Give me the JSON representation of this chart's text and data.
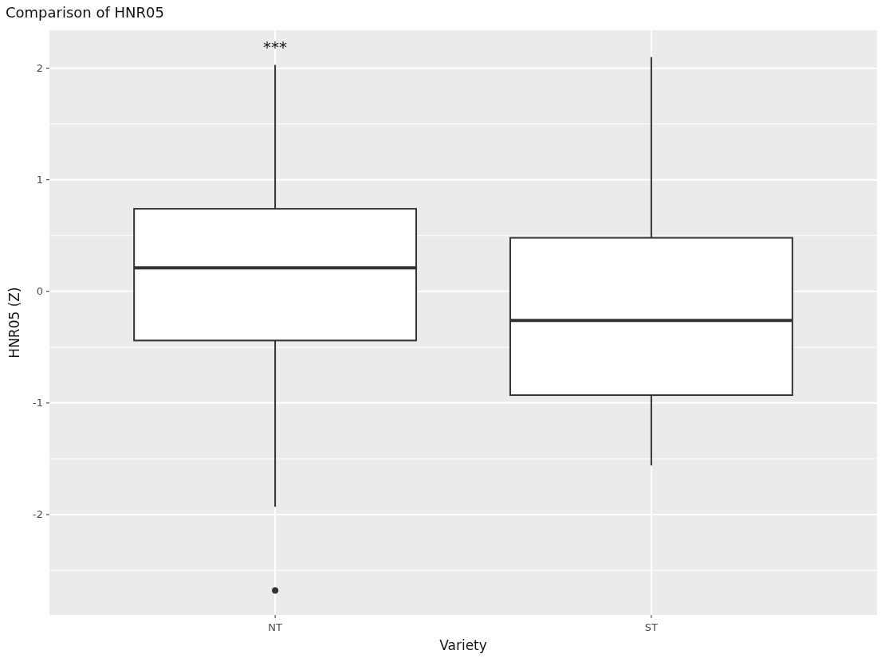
{
  "chart_data": {
    "type": "box",
    "title": "Comparison of HNR05",
    "xlabel": "Variety",
    "ylabel": "HNR05 (Z)",
    "categories": [
      "NT",
      "ST"
    ],
    "boxes": [
      {
        "low": -1.93,
        "q1": -0.44,
        "median": 0.21,
        "q3": 0.74,
        "high": 2.03,
        "outliers": [
          -2.68
        ]
      },
      {
        "low": -1.56,
        "q1": -0.93,
        "median": -0.26,
        "q3": 0.48,
        "high": 2.1
      }
    ],
    "ylim": [
      -2.9,
      2.34
    ],
    "yticks": [
      -2,
      -1,
      0,
      1,
      2
    ],
    "grid": true,
    "annotations": [
      "***"
    ]
  }
}
